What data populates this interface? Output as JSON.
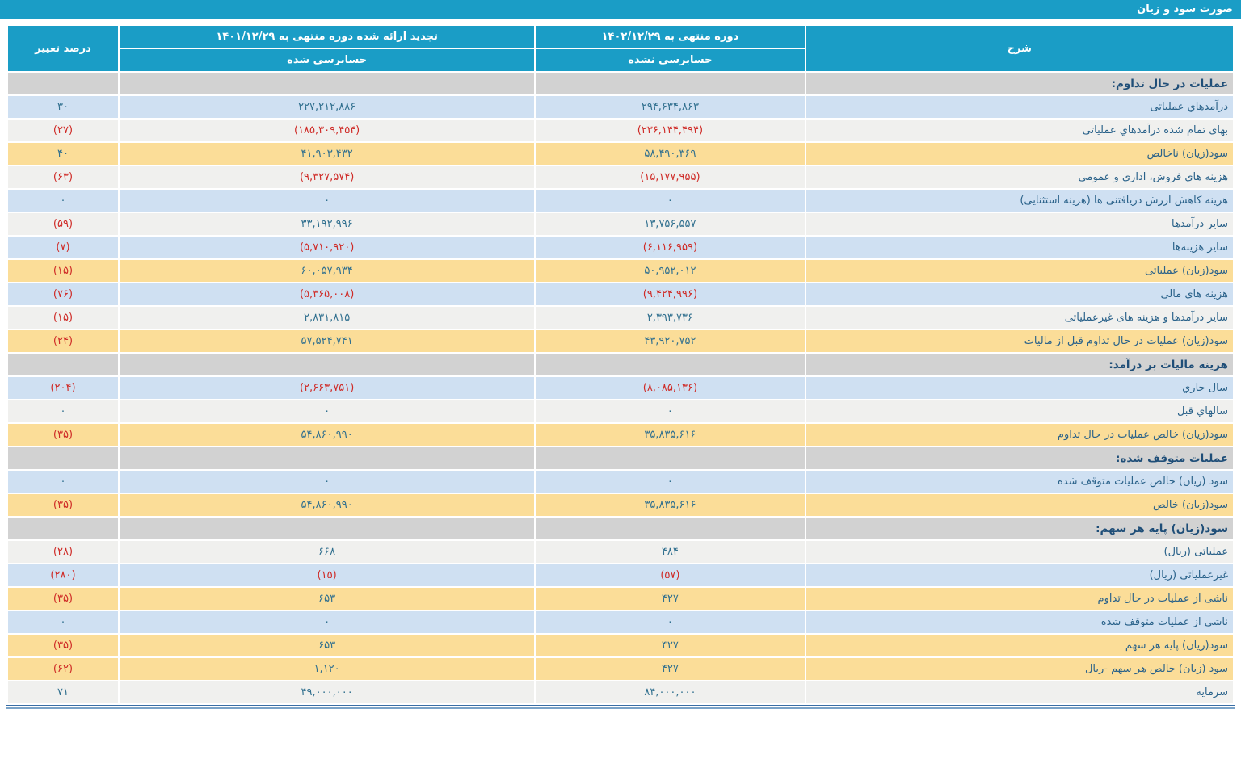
{
  "title": "صورت سود و زیان",
  "colors": {
    "header_blue": "#1a9dc6",
    "section_gray": "#d2d2d2",
    "row_blue": "#cfe0f2",
    "row_white": "#f0f0ee",
    "row_yellow": "#fbdd98",
    "number_blue": "#31708f",
    "number_negative_red": "#cf2b27"
  },
  "table": {
    "headers": {
      "description": "شرح",
      "period_current": "دوره منتهی به ۱۴۰۲/۱۲/۲۹",
      "period_current_sub": "حسابرسی نشده",
      "period_prior": "تجدید ارائه شده دوره منتهی به ۱۴۰۱/۱۲/۲۹",
      "period_prior_sub": "حسابرسی شده",
      "change": "درصد تغییر"
    },
    "rows": [
      {
        "type": "section",
        "label": "عملیات در حال تداوم:"
      },
      {
        "type": "data",
        "bg": "blue",
        "label": "درآمدهاي عملیاتی",
        "current": "۲۹۴,۶۳۴,۸۶۳",
        "prior": "۲۲۷,۲۱۲,۸۸۶",
        "change": "۳۰"
      },
      {
        "type": "data",
        "bg": "white",
        "label": "بهای تمام شده درآمدهاي عملیاتی",
        "current": "(۲۳۶,۱۴۴,۴۹۴)",
        "prior": "(۱۸۵,۳۰۹,۴۵۴)",
        "change": "(۲۷)"
      },
      {
        "type": "data",
        "bg": "yellow",
        "label": "سود(زیان) ناخالص",
        "current": "۵۸,۴۹۰,۳۶۹",
        "prior": "۴۱,۹۰۳,۴۳۲",
        "change": "۴۰"
      },
      {
        "type": "data",
        "bg": "white",
        "label": "هزینه های فروش، اداری و عمومی",
        "current": "(۱۵,۱۷۷,۹۵۵)",
        "prior": "(۹,۳۲۷,۵۷۴)",
        "change": "(۶۳)"
      },
      {
        "type": "data",
        "bg": "blue",
        "label": "هزینه کاهش ارزش دریافتنی ها (هزینه استثنایی)",
        "current": "۰",
        "prior": "۰",
        "change": "۰"
      },
      {
        "type": "data",
        "bg": "white",
        "label": "سایر درآمدها",
        "current": "۱۳,۷۵۶,۵۵۷",
        "prior": "۳۳,۱۹۲,۹۹۶",
        "change": "(۵۹)"
      },
      {
        "type": "data",
        "bg": "blue",
        "label": "سایر هزینه‌ها",
        "current": "(۶,۱۱۶,۹۵۹)",
        "prior": "(۵,۷۱۰,۹۲۰)",
        "change": "(۷)"
      },
      {
        "type": "data",
        "bg": "yellow",
        "label": "سود(زیان) عملیاتی",
        "current": "۵۰,۹۵۲,۰۱۲",
        "prior": "۶۰,۰۵۷,۹۳۴",
        "change": "(۱۵)"
      },
      {
        "type": "data",
        "bg": "blue",
        "label": "هزینه های مالی",
        "current": "(۹,۴۲۴,۹۹۶)",
        "prior": "(۵,۳۶۵,۰۰۸)",
        "change": "(۷۶)"
      },
      {
        "type": "data",
        "bg": "white",
        "label": "سایر درآمدها و هزینه های غیرعملیاتی",
        "current": "۲,۳۹۳,۷۳۶",
        "prior": "۲,۸۳۱,۸۱۵",
        "change": "(۱۵)"
      },
      {
        "type": "data",
        "bg": "yellow",
        "label": "سود(زیان) عملیات در حال تداوم قبل از مالیات",
        "current": "۴۳,۹۲۰,۷۵۲",
        "prior": "۵۷,۵۲۴,۷۴۱",
        "change": "(۲۴)"
      },
      {
        "type": "section",
        "label": "هزینه مالیات بر درآمد:"
      },
      {
        "type": "data",
        "bg": "blue",
        "label": "سال جاري",
        "current": "(۸,۰۸۵,۱۳۶)",
        "prior": "(۲,۶۶۳,۷۵۱)",
        "change": "(۲۰۴)"
      },
      {
        "type": "data",
        "bg": "white",
        "label": "سالهاي قبل",
        "current": "۰",
        "prior": "۰",
        "change": "۰"
      },
      {
        "type": "data",
        "bg": "yellow",
        "label": "سود(زیان) خالص عملیات در حال تداوم",
        "current": "۳۵,۸۳۵,۶۱۶",
        "prior": "۵۴,۸۶۰,۹۹۰",
        "change": "(۳۵)"
      },
      {
        "type": "section",
        "label": "عملیات متوقف شده:"
      },
      {
        "type": "data",
        "bg": "blue",
        "label": "سود (زیان) خالص عملیات متوقف شده",
        "current": "۰",
        "prior": "۰",
        "change": "۰"
      },
      {
        "type": "data",
        "bg": "yellow",
        "label": "سود(زیان) خالص",
        "current": "۳۵,۸۳۵,۶۱۶",
        "prior": "۵۴,۸۶۰,۹۹۰",
        "change": "(۳۵)"
      },
      {
        "type": "section",
        "label": "سود(زیان) پایه هر سهم:"
      },
      {
        "type": "data",
        "bg": "white",
        "label": "عملیاتی (ریال)",
        "current": "۴۸۴",
        "prior": "۶۶۸",
        "change": "(۲۸)"
      },
      {
        "type": "data",
        "bg": "blue",
        "label": "غیرعملیاتی (ریال)",
        "current": "(۵۷)",
        "prior": "(۱۵)",
        "change": "(۲۸۰)"
      },
      {
        "type": "data",
        "bg": "yellow",
        "label": "ناشی از عملیات در حال تداوم",
        "current": "۴۲۷",
        "prior": "۶۵۳",
        "change": "(۳۵)"
      },
      {
        "type": "data",
        "bg": "blue",
        "label": "ناشی از عملیات متوقف شده",
        "current": "۰",
        "prior": "۰",
        "change": "۰"
      },
      {
        "type": "data",
        "bg": "yellow",
        "label": "سود(زیان) پایه هر سهم",
        "current": "۴۲۷",
        "prior": "۶۵۳",
        "change": "(۳۵)"
      },
      {
        "type": "data",
        "bg": "yellow",
        "label": "سود (زیان) خالص هر سهم -ریال",
        "current": "۴۲۷",
        "prior": "۱,۱۲۰",
        "change": "(۶۲)"
      },
      {
        "type": "data",
        "bg": "white",
        "label": "سرمایه",
        "current": "۸۴,۰۰۰,۰۰۰",
        "prior": "۴۹,۰۰۰,۰۰۰",
        "change": "۷۱"
      }
    ]
  }
}
